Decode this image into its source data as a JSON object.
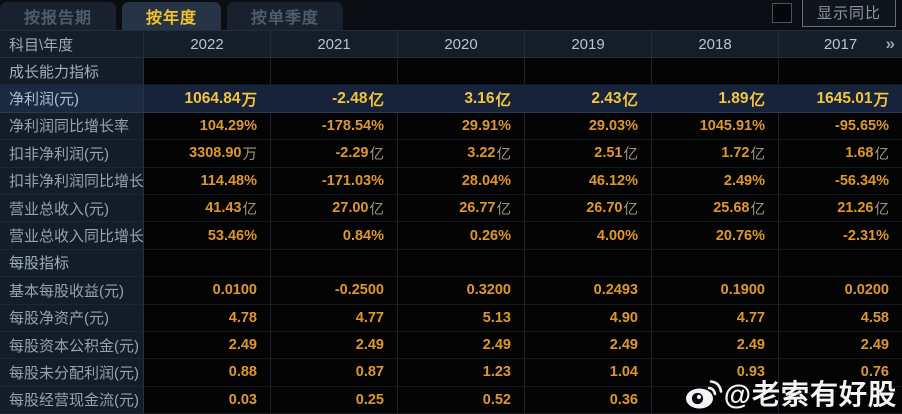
{
  "tabs": [
    {
      "label": "按报告期",
      "active": false
    },
    {
      "label": "按年度",
      "active": true
    },
    {
      "label": "按单季度",
      "active": false
    }
  ],
  "controls": {
    "show_yoy_label": "显示同比",
    "checkbox_checked": false
  },
  "table": {
    "corner_header": "科目\\年度",
    "year_columns": [
      "2022",
      "2021",
      "2020",
      "2019",
      "2018",
      "2017"
    ],
    "more_columns_glyph": "»",
    "rows": [
      {
        "type": "section",
        "label": "成长能力指标",
        "values": [
          "",
          "",
          "",
          "",
          "",
          ""
        ]
      },
      {
        "type": "data",
        "highlight": true,
        "label": "净利润(元)",
        "values": [
          "1064.84万",
          "-2.48亿",
          "3.16亿",
          "2.43亿",
          "1.89亿",
          "1645.01万"
        ]
      },
      {
        "type": "data",
        "label": "净利润同比增长率",
        "values": [
          "104.29%",
          "-178.54%",
          "29.91%",
          "29.03%",
          "1045.91%",
          "-95.65%"
        ]
      },
      {
        "type": "data",
        "label": "扣非净利润(元)",
        "values": [
          "3308.90万",
          "-2.29亿",
          "3.22亿",
          "2.51亿",
          "1.72亿",
          "1.68亿"
        ]
      },
      {
        "type": "data",
        "label": "扣非净利润同比增长率",
        "values": [
          "114.48%",
          "-171.03%",
          "28.04%",
          "46.12%",
          "2.49%",
          "-56.34%"
        ]
      },
      {
        "type": "data",
        "label": "营业总收入(元)",
        "values": [
          "41.43亿",
          "27.00亿",
          "26.77亿",
          "26.70亿",
          "25.68亿",
          "21.26亿"
        ]
      },
      {
        "type": "data",
        "label": "营业总收入同比增长率",
        "values": [
          "53.46%",
          "0.84%",
          "0.26%",
          "4.00%",
          "20.76%",
          "-2.31%"
        ]
      },
      {
        "type": "section",
        "label": "每股指标",
        "values": [
          "",
          "",
          "",
          "",
          "",
          ""
        ]
      },
      {
        "type": "data",
        "label": "基本每股收益(元)",
        "values": [
          "0.0100",
          "-0.2500",
          "0.3200",
          "0.2493",
          "0.1900",
          "0.0200"
        ]
      },
      {
        "type": "data",
        "label": "每股净资产(元)",
        "values": [
          "4.78",
          "4.77",
          "5.13",
          "4.90",
          "4.77",
          "4.58"
        ]
      },
      {
        "type": "data",
        "label": "每股资本公积金(元)",
        "values": [
          "2.49",
          "2.49",
          "2.49",
          "2.49",
          "2.49",
          "2.49"
        ]
      },
      {
        "type": "data",
        "label": "每股未分配利润(元)",
        "values": [
          "0.88",
          "0.87",
          "1.23",
          "1.04",
          "0.93",
          "0.76"
        ]
      },
      {
        "type": "data",
        "label": "每股经营现金流(元)",
        "values": [
          "0.03",
          "0.25",
          "0.52",
          "0.36",
          "",
          ""
        ]
      }
    ]
  },
  "watermark": {
    "text": "@老索有好股",
    "icon": "weibo-logo"
  },
  "colors": {
    "value_orange": "#dd9730",
    "highlight_gold": "#f3c43e",
    "tab_active_gold": "#f2c42c",
    "highlight_row_bg": "#16233a",
    "label_col_bg": "#131c27",
    "header_row_bg": "#141d28",
    "data_cell_bg": "#040404"
  }
}
